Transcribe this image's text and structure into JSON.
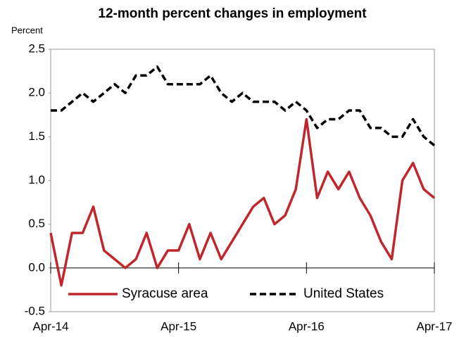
{
  "chart_data": {
    "type": "line",
    "title": "12-month percent changes in employment",
    "ylabel": "Percent",
    "categories": [
      "Apr-14",
      null,
      null,
      null,
      null,
      null,
      null,
      null,
      null,
      null,
      null,
      null,
      "Apr-15",
      null,
      null,
      null,
      null,
      null,
      null,
      null,
      null,
      null,
      null,
      null,
      "Apr-16",
      null,
      null,
      null,
      null,
      null,
      null,
      null,
      null,
      null,
      null,
      null,
      "Apr-17"
    ],
    "series": [
      {
        "name": "Syracuse area",
        "color": "#c0272d",
        "dash": false,
        "values": [
          0.4,
          -0.2,
          0.4,
          0.4,
          0.7,
          0.2,
          0.1,
          0.0,
          0.1,
          0.4,
          0.0,
          0.2,
          0.2,
          0.5,
          0.1,
          0.4,
          0.1,
          0.3,
          0.5,
          0.7,
          0.8,
          0.5,
          0.6,
          0.9,
          1.7,
          0.8,
          1.1,
          0.9,
          1.1,
          0.8,
          0.6,
          0.3,
          0.1,
          1.0,
          1.2,
          0.9,
          0.8
        ]
      },
      {
        "name": "United States",
        "color": "#000000",
        "dash": true,
        "values": [
          1.8,
          1.8,
          1.9,
          2.0,
          1.9,
          2.0,
          2.1,
          2.0,
          2.2,
          2.2,
          2.3,
          2.1,
          2.1,
          2.1,
          2.1,
          2.2,
          2.0,
          1.9,
          2.0,
          1.9,
          1.9,
          1.9,
          1.8,
          1.9,
          1.8,
          1.6,
          1.7,
          1.7,
          1.8,
          1.8,
          1.6,
          1.6,
          1.5,
          1.5,
          1.7,
          1.5,
          1.4
        ]
      }
    ],
    "ylim": [
      -0.5,
      2.5
    ],
    "yticks": [
      -0.5,
      {
        "value": 0,
        "label": "0.0"
      },
      0.5,
      {
        "value": 1,
        "label": "1.0"
      },
      1.5,
      {
        "value": 2,
        "label": "2.0"
      },
      2.5
    ],
    "grid": false,
    "legend": "bottom"
  }
}
